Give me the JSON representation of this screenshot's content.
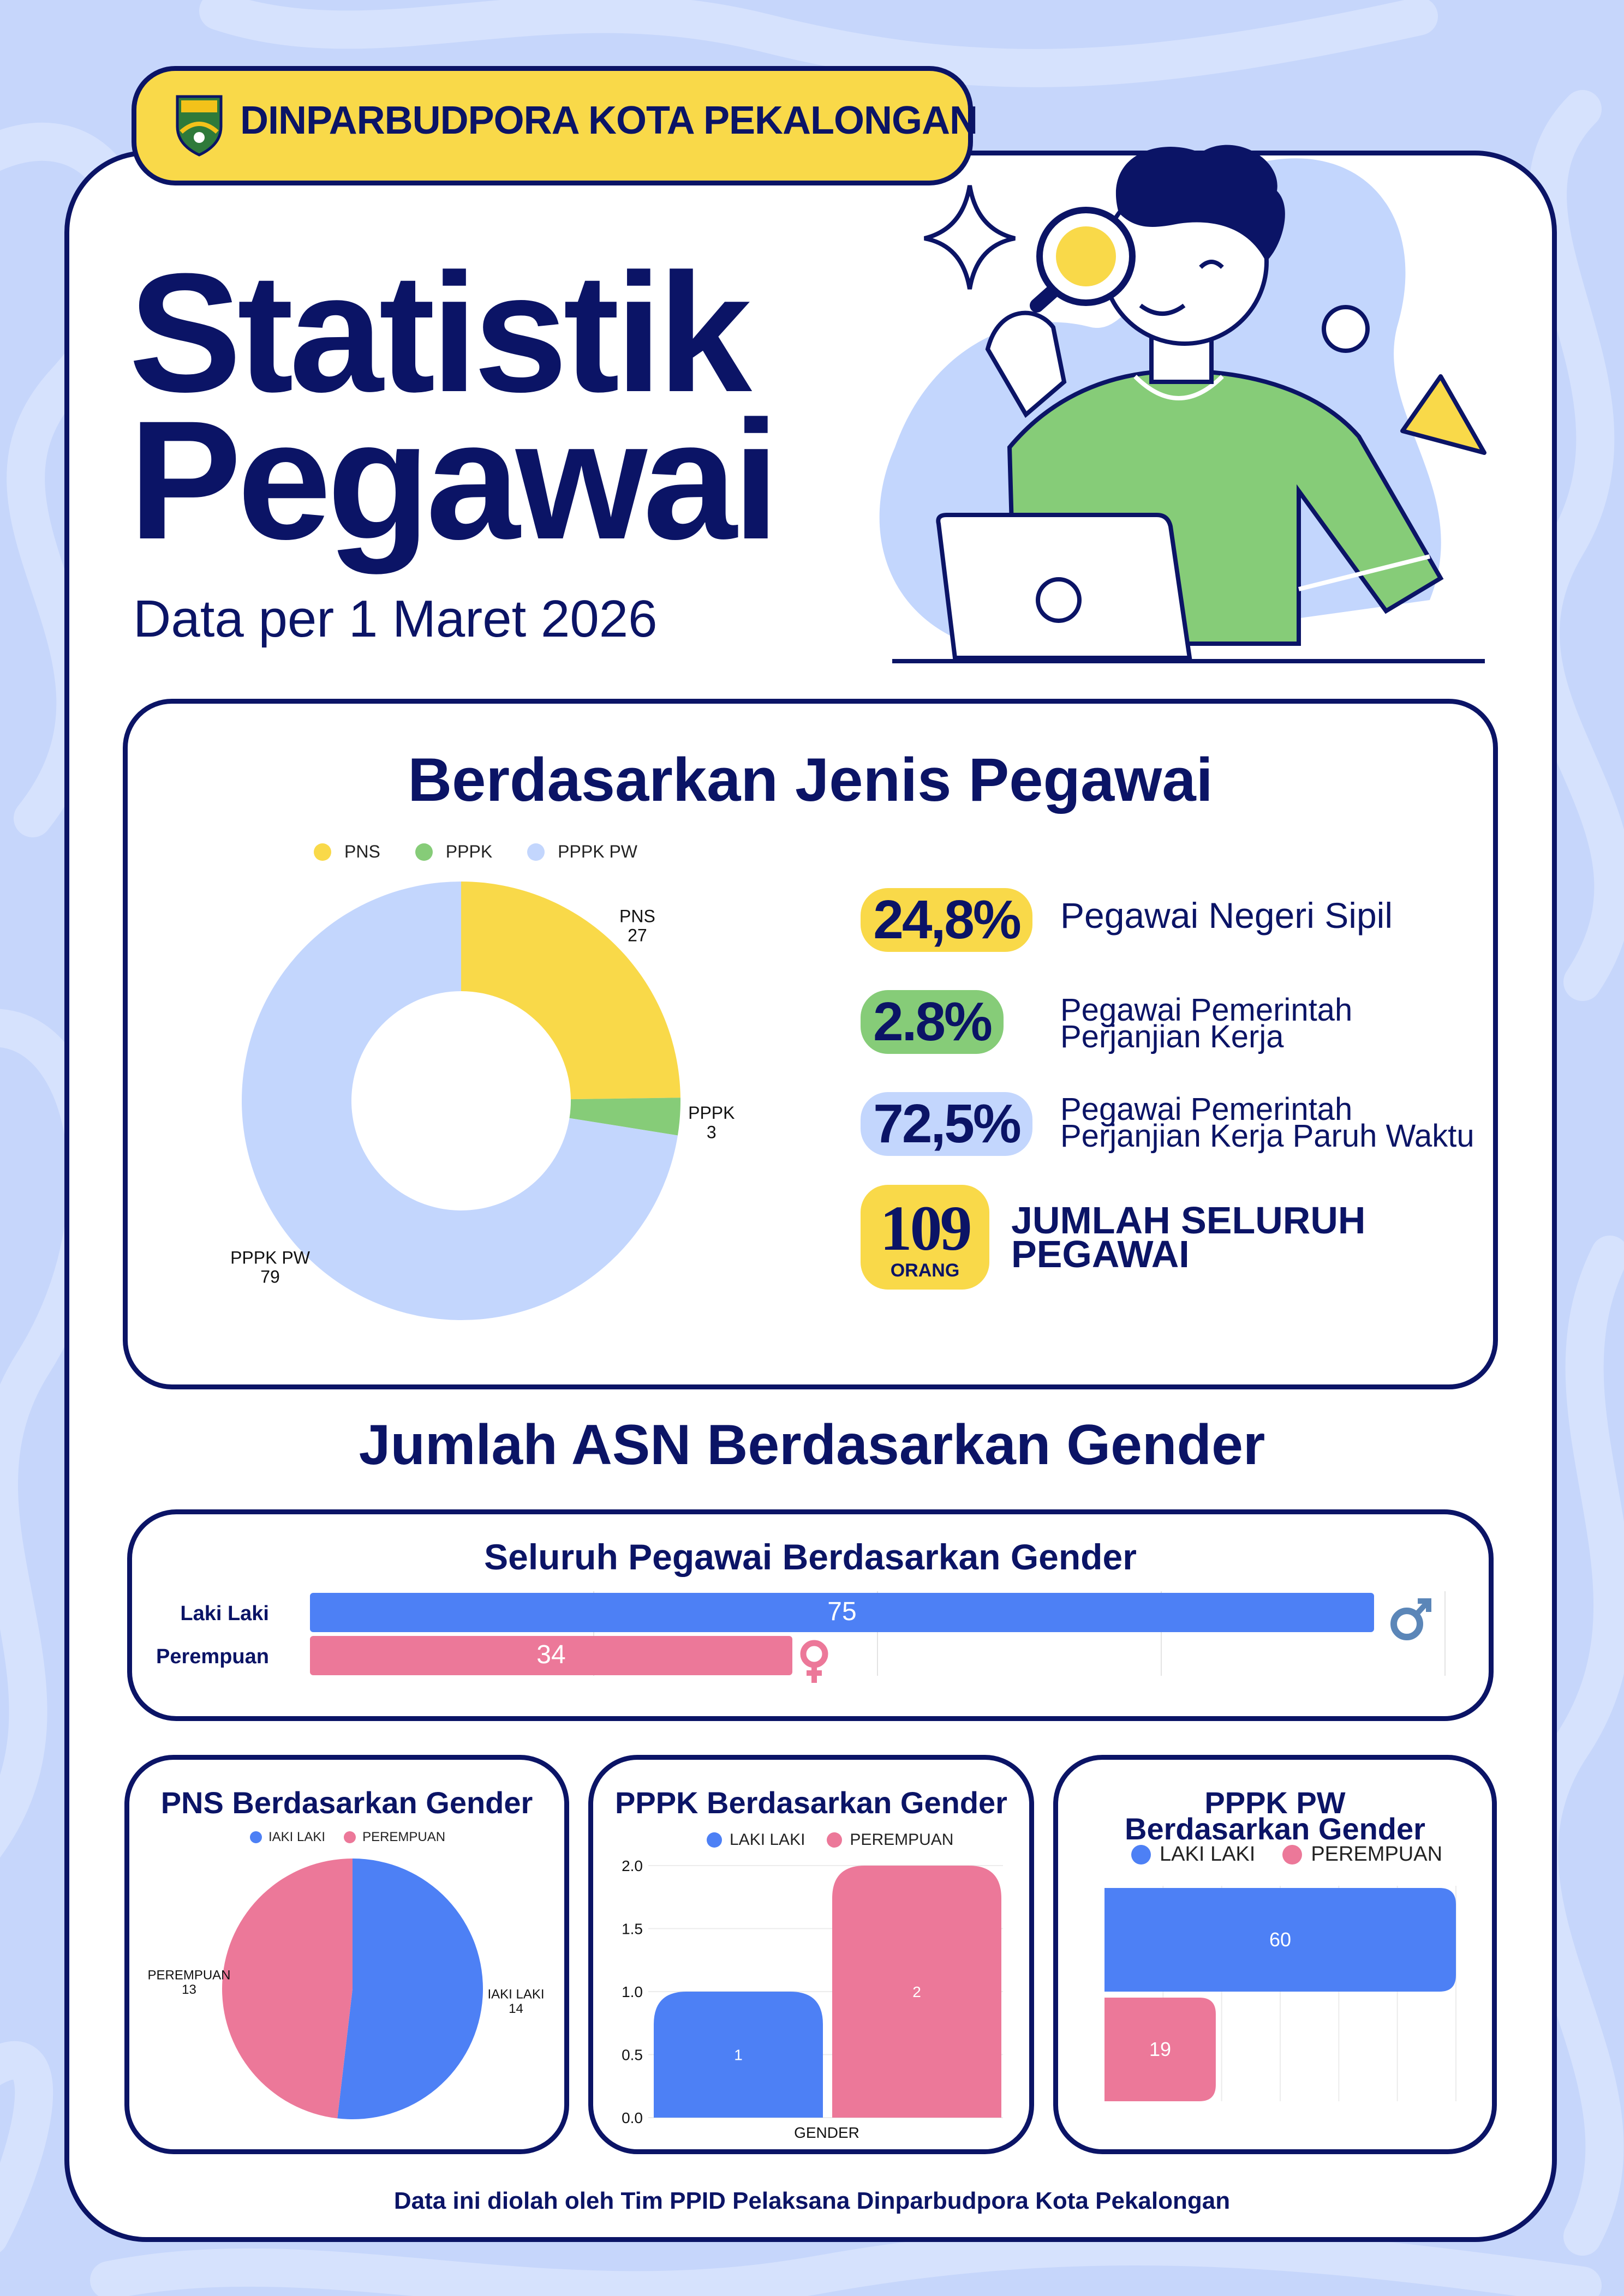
{
  "header": {
    "org_name": "DINPARBUDPORA KOTA PEKALONGAN"
  },
  "hero": {
    "title_line1": "Statistik",
    "title_line2": "Pegawai",
    "date_text": "Data per 1 Maret 2026"
  },
  "jenis_section": {
    "title": "Berdasarkan Jenis Pegawai",
    "stats": [
      {
        "value": "24,8%",
        "label_line1": "Pegawai Negeri Sipil",
        "label_line2": "",
        "color": "#f9d949"
      },
      {
        "value": "2.8%",
        "label_line1": "Pegawai Pemerintah",
        "label_line2": "Perjanjian Kerja",
        "color": "#86cc78"
      },
      {
        "value": "72,5%",
        "label_line1": "Pegawai Pemerintah",
        "label_line2": "Perjanjian Kerja Paruh Waktu",
        "color": "#c3d6fd"
      }
    ],
    "total": {
      "value": "109",
      "unit": "ORANG",
      "label_line1": "JUMLAH SELURUH",
      "label_line2": "PEGAWAI"
    }
  },
  "gender_heading": "Jumlah ASN Berdasarkan Gender",
  "footer": "Data ini diolah oleh Tim PPID Pelaksana Dinparbudpora Kota Pekalongan",
  "chart_data": [
    {
      "type": "pie",
      "variant": "donut",
      "title": "",
      "legend": [
        "PNS",
        "PPPK",
        "PPPK PW"
      ],
      "legend_position": "top",
      "categories": [
        "PNS",
        "PPPK",
        "PPPK PW"
      ],
      "values": [
        27,
        3,
        79
      ],
      "colors": [
        "#f9d949",
        "#86cc78",
        "#c3d6fd"
      ]
    },
    {
      "type": "bar",
      "orientation": "horizontal",
      "title": "Seluruh Pegawai Berdasarkan Gender",
      "categories": [
        "Laki Laki",
        "Perempuan"
      ],
      "values": [
        75,
        34
      ],
      "colors": [
        "#4d80f5",
        "#ec7899"
      ],
      "icons": [
        "male-symbol",
        "female-symbol"
      ],
      "xlim": [
        0,
        80
      ],
      "grid": true
    },
    {
      "type": "pie",
      "title": "PNS Berdasarkan Gender",
      "legend": [
        "IAKI LAKI",
        "PEREMPUAN"
      ],
      "legend_position": "top",
      "categories": [
        "IAKI LAKI",
        "PEREMPUAN"
      ],
      "values": [
        14,
        13
      ],
      "colors": [
        "#4d80f5",
        "#ec7899"
      ]
    },
    {
      "type": "bar",
      "orientation": "vertical",
      "title": "PPPK Berdasarkan Gender",
      "legend": [
        "LAKI LAKI",
        "PEREMPUAN"
      ],
      "legend_position": "top",
      "xlabel": "GENDER",
      "series": [
        {
          "name": "LAKI LAKI",
          "values": [
            1
          ]
        },
        {
          "name": "PEREMPUAN",
          "values": [
            2
          ]
        }
      ],
      "colors": [
        "#4d80f5",
        "#ec7899"
      ],
      "ylim": [
        0,
        2.0
      ],
      "yticks": [
        "0.0",
        "0.5",
        "1.0",
        "1.5",
        "2.0"
      ],
      "grid": true
    },
    {
      "type": "bar",
      "orientation": "horizontal",
      "title_line1": "PPPK PW",
      "title_line2": "Berdasarkan Gender",
      "legend": [
        "LAKI LAKI",
        "PEREMPUAN"
      ],
      "legend_position": "top",
      "series": [
        {
          "name": "LAKI LAKI",
          "values": [
            60
          ]
        },
        {
          "name": "PEREMPUAN",
          "values": [
            19
          ]
        }
      ],
      "colors": [
        "#4d80f5",
        "#ec7899"
      ],
      "xlim": [
        0,
        60
      ],
      "grid": true
    }
  ]
}
